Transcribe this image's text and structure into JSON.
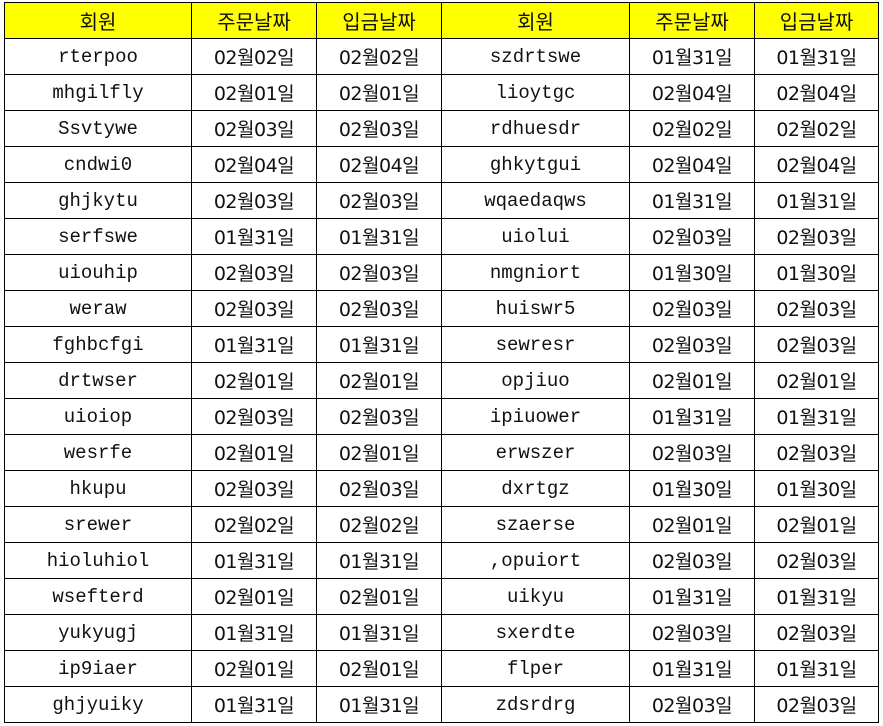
{
  "header_color": "#ffff00",
  "columns": [
    "회원",
    "주문날짜",
    "입금날짜",
    "회원",
    "주문날짜",
    "입금날짜"
  ],
  "rows": [
    [
      "rterpoo",
      "02월02일",
      "02월02일",
      "szdrtswe",
      "01월31일",
      "01월31일"
    ],
    [
      "mhgilfly",
      "02월01일",
      "02월01일",
      "lioytgc",
      "02월04일",
      "02월04일"
    ],
    [
      "Ssvtywe",
      "02월03일",
      "02월03일",
      "rdhuesdr",
      "02월02일",
      "02월02일"
    ],
    [
      "cndwi0",
      "02월04일",
      "02월04일",
      "ghkytgui",
      "02월04일",
      "02월04일"
    ],
    [
      "ghjkytu",
      "02월03일",
      "02월03일",
      "wqaedaqws",
      "01월31일",
      "01월31일"
    ],
    [
      "serfswe",
      "01월31일",
      "01월31일",
      "uiolui",
      "02월03일",
      "02월03일"
    ],
    [
      "uiouhip",
      "02월03일",
      "02월03일",
      "nmgniort",
      "01월30일",
      "01월30일"
    ],
    [
      "weraw",
      "02월03일",
      "02월03일",
      "huiswr5",
      "02월03일",
      "02월03일"
    ],
    [
      "fghbcfgi",
      "01월31일",
      "01월31일",
      "sewresr",
      "02월03일",
      "02월03일"
    ],
    [
      "drtwser",
      "02월01일",
      "02월01일",
      "opjiuo",
      "02월01일",
      "02월01일"
    ],
    [
      "uioiop",
      "02월03일",
      "02월03일",
      "ipiuower",
      "01월31일",
      "01월31일"
    ],
    [
      "wesrfe",
      "02월01일",
      "02월01일",
      "erwszer",
      "02월03일",
      "02월03일"
    ],
    [
      "hkupu",
      "02월03일",
      "02월03일",
      "dxrtgz",
      "01월30일",
      "01월30일"
    ],
    [
      "srewer",
      "02월02일",
      "02월02일",
      "szaerse",
      "02월01일",
      "02월01일"
    ],
    [
      "hioluhiol",
      "01월31일",
      "01월31일",
      ",opuiort",
      "02월03일",
      "02월03일"
    ],
    [
      "wsefterd",
      "02월01일",
      "02월01일",
      "uikyu",
      "01월31일",
      "01월31일"
    ],
    [
      "yukyugj",
      "01월31일",
      "01월31일",
      "sxerdte",
      "02월03일",
      "02월03일"
    ],
    [
      "ip9iaer",
      "02월01일",
      "02월01일",
      "flper",
      "01월31일",
      "01월31일"
    ],
    [
      "ghjyuiky",
      "01월31일",
      "01월31일",
      "zdsrdrg",
      "02월03일",
      "02월03일"
    ]
  ]
}
